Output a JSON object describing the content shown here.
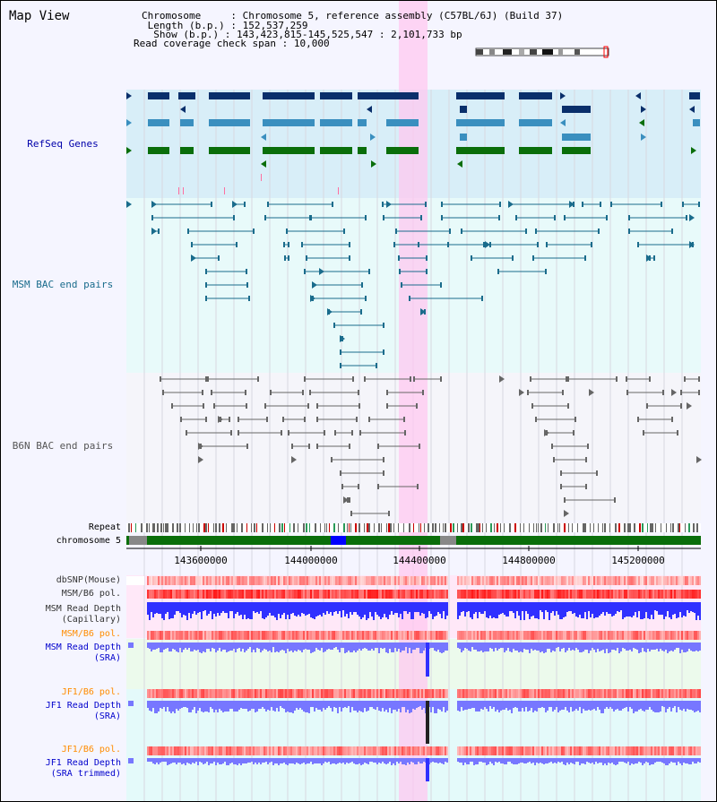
{
  "title": "Map View",
  "info": {
    "chromosome_key": "Chromosome",
    "chromosome_val": "Chromosome 5, reference assembly (C57BL/6J) (Build 37)",
    "length_key": "Length (b.p.)",
    "length_val": "152,537,259",
    "show_key": "Show (b.p.)",
    "show_val": "143,423,815-145,525,547 : 2,101,733 bp",
    "coverage_key": "Read coverage check span",
    "coverage_val": "10,000"
  },
  "tracks": {
    "refseq": "RefSeq Genes",
    "msm_bac": "MSM BAC end pairs",
    "b6n_bac": "B6N BAC end pairs",
    "repeat": "Repeat",
    "chromosome": "chromosome 5",
    "dbsnp": "dbSNP(Mouse)",
    "msm_b6_pol": "MSM/B6 pol.",
    "msm_depth_cap_1": "MSM Read Depth",
    "msm_depth_cap_2": "(Capillary)",
    "msm_b6_pol_2": "MSM/B6 pol.",
    "msm_depth_sra_1": "MSM Read Depth",
    "msm_depth_sra_2": "(SRA)",
    "jf1_b6_pol": "JF1/B6 pol.",
    "jf1_depth_sra_1": "JF1 Read Depth",
    "jf1_depth_sra_2": "(SRA)",
    "jf1_b6_pol_2": "JF1/B6 pol.",
    "jf1_depth_trim_1": "JF1 Read Depth",
    "jf1_depth_trim_2": "(SRA trimmed)"
  },
  "axis_ticks": [
    "143600000",
    "144000000",
    "144400000",
    "144800000",
    "145200000"
  ],
  "colors": {
    "refseq_dark": "#0a2f6b",
    "refseq_mid": "#3a8fbf",
    "refseq_green": "#0a6e0a",
    "msm_bac": "#1a6c8c",
    "b6n_bac": "#666666",
    "highlight": "#ffc8f0",
    "chrom_green": "#0a6e0a",
    "chrom_blue": "#0000ff",
    "depth_blue": "#3030ff",
    "depth_light": "#7777ff",
    "pol_red": "#ff3030"
  }
}
